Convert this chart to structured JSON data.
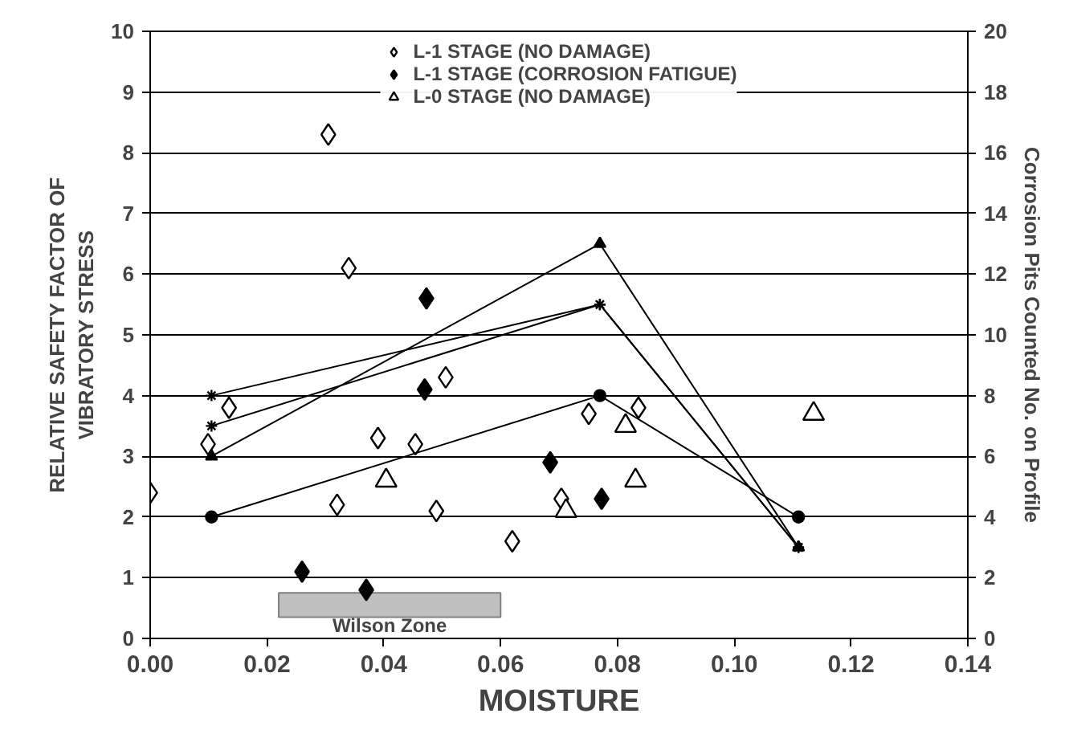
{
  "chart_data": {
    "type": "scatter",
    "xlabel": "MOISTURE",
    "ylabel": "RELATIVE SAFETY FACTOR OF\nVIBRATORY STRESS",
    "y2label": "Corrosion Pits Counted No. on Profile",
    "xlim": [
      0,
      0.14
    ],
    "xticks": [
      {
        "value": 0,
        "label": "0.00"
      },
      0.02,
      0.04,
      0.06,
      0.08,
      {
        "value": 0.1,
        "label": "0.10"
      },
      0.12,
      0.14
    ],
    "ylim": [
      0,
      10
    ],
    "yticks": [
      0,
      1,
      2,
      3,
      4,
      5,
      6,
      7,
      8,
      9,
      10
    ],
    "y2lim": [
      0,
      20
    ],
    "y2ticks": [
      0,
      2,
      4,
      6,
      8,
      10,
      12,
      14,
      16,
      18,
      20
    ],
    "grid": "y",
    "legend": "top",
    "bands": [
      {
        "axis": "x",
        "from": 0.022,
        "to": 0.06,
        "label": "Wilson Zone",
        "color": "#c0c0c0"
      }
    ],
    "series": [
      {
        "name": "L-1 STAGE (NO DAMAGE)",
        "type": "scatter",
        "marker": "diamond",
        "color": "#ffffff",
        "x": [
          0.0,
          0.0099,
          0.0135,
          0.0305,
          0.034,
          0.032,
          0.039,
          0.0454,
          0.049,
          0.0506,
          0.062,
          0.0704,
          0.0751,
          0.0836
        ],
        "values": [
          2.4,
          3.2,
          3.8,
          8.3,
          6.1,
          2.2,
          3.3,
          3.2,
          2.1,
          4.3,
          1.6,
          2.3,
          3.7,
          3.8
        ]
      },
      {
        "name": "L-1 STAGE (CORROSION FATIGUE)",
        "type": "scatter",
        "marker": "diamond",
        "color": "#000000",
        "x": [
          0.0473,
          0.047,
          0.026,
          0.037,
          0.0685,
          0.0773
        ],
        "values": [
          5.6,
          4.1,
          1.1,
          0.8,
          2.9,
          2.3
        ]
      },
      {
        "name": "L-0 STAGE (NO DAMAGE)",
        "type": "scatter",
        "marker": "triangle",
        "color": "#ffffff",
        "x": [
          0.0404,
          0.0712,
          0.0814,
          0.0831,
          0.1136
        ],
        "values": [
          2.6,
          2.1,
          3.5,
          2.6,
          3.7
        ]
      },
      {
        "type": "line",
        "axis": "y2",
        "marker": "triangle",
        "color": "#000000",
        "x": [
          0.0105,
          0.077,
          0.111
        ],
        "values": [
          6,
          13,
          3
        ]
      },
      {
        "type": "line",
        "axis": "y2",
        "marker": "cross",
        "color": "#000000",
        "x": [
          0.0105,
          0.077,
          0.111
        ],
        "values": [
          8,
          11,
          3
        ]
      },
      {
        "type": "line",
        "axis": "y2",
        "marker": "cross",
        "color": "#000000",
        "x": [
          0.0105,
          0.077,
          0.111
        ],
        "values": [
          7,
          11,
          3
        ]
      },
      {
        "type": "line",
        "axis": "y2",
        "marker": "circle",
        "color": "#000000",
        "x": [
          0.0105,
          0.077,
          0.111
        ],
        "values": [
          4,
          8,
          4
        ]
      }
    ]
  }
}
